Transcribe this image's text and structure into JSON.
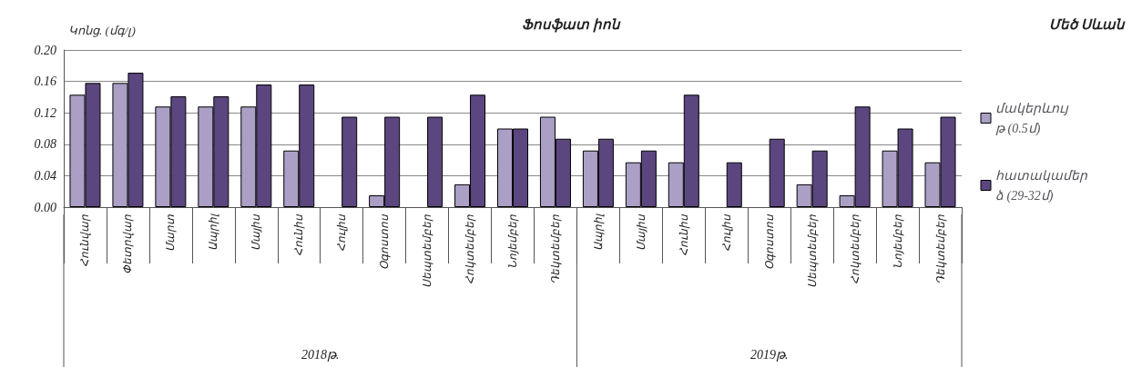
{
  "chart_data": {
    "type": "bar",
    "title": "Ֆոսֆատ իոն",
    "subtitle": "Մեծ Սևան",
    "ylabel": "Կոնց. (մգ/լ)",
    "categories": [
      "Հունվար",
      "Փետրվար",
      "Մարտ",
      "Ապրիլ",
      "Մայիս",
      "Հունիս",
      "Հուլիս",
      "Օգոստոս",
      "Սեպտեմբեր",
      "Հոկտեմբեր",
      "Նոյեմբեր",
      "Դեկտեմբեր",
      "Ապրիլ",
      "Մայիս",
      "Հունիս",
      "Հուլիս",
      "Օգոստոս",
      "Սեպտեմբեր",
      "Հոկտեմբեր",
      "Նոյեմբեր",
      "Դեկտեմբեր"
    ],
    "series": [
      {
        "name": "մակերևույթ (0.5մ)",
        "color": "#ab9fc6",
        "values": [
          0.143,
          0.158,
          0.128,
          0.128,
          0.128,
          0.072,
          null,
          0.015,
          null,
          0.029,
          0.1,
          0.115,
          0.072,
          0.057,
          0.057,
          null,
          null,
          0.029,
          0.015,
          0.072,
          0.057
        ]
      },
      {
        "name": "հատակամերձ (29-32մ)",
        "color": "#5b4680",
        "values": [
          0.158,
          0.171,
          0.141,
          0.141,
          0.156,
          0.156,
          0.115,
          0.115,
          0.115,
          0.143,
          0.1,
          0.087,
          0.087,
          0.072,
          0.143,
          0.057,
          0.087,
          0.072,
          0.128,
          0.1,
          0.115
        ]
      }
    ],
    "annotations": [
      "2018թ.",
      "2019թ."
    ],
    "ylim": [
      0,
      0.2
    ],
    "yticks": [
      {
        "value": 0,
        "label": "0.00"
      },
      {
        "value": 0.04,
        "label": "0.04"
      },
      {
        "value": 0.08,
        "label": "0.08"
      },
      {
        "value": 0.12,
        "label": "0.12"
      },
      {
        "value": 0.16,
        "label": "0.16"
      },
      {
        "value": 0.2,
        "label": "0.20"
      }
    ],
    "grid": "y",
    "legend": "right"
  }
}
